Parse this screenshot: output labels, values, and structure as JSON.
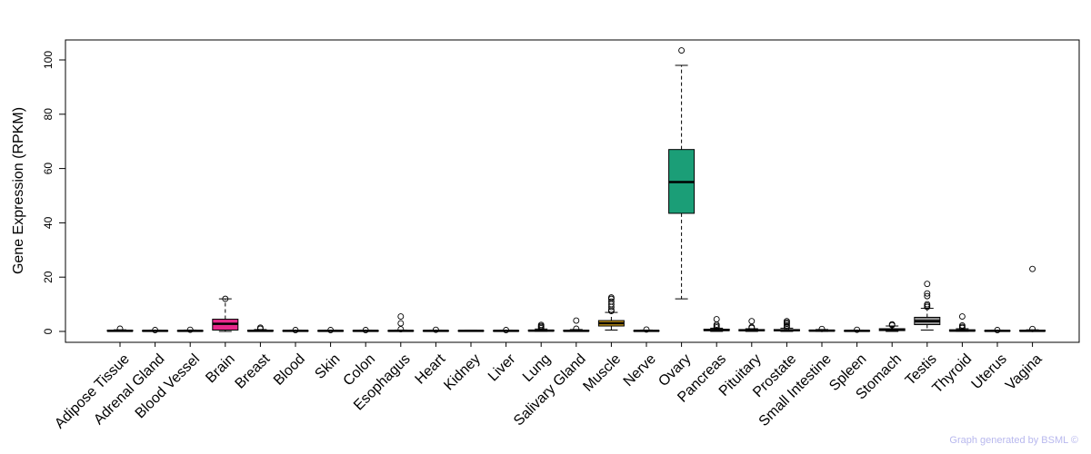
{
  "chart_data": {
    "type": "box",
    "ylabel": "Gene Expression (RPKM)",
    "ylim": [
      -5,
      107
    ],
    "yticks": [
      0,
      20,
      40,
      60,
      80,
      100
    ],
    "highlight": {
      "category": "Brain",
      "color": "#ff0000"
    },
    "credit": "Graph generated by BSML ©",
    "categories": [
      {
        "name": "Adipose Tissue",
        "color": "#8c8c8c",
        "q1": 0.1,
        "median": 0.2,
        "q3": 0.4,
        "wlo": 0.0,
        "whi": 0.6,
        "outliers": [
          1.0
        ]
      },
      {
        "name": "Adrenal Gland",
        "color": "#8c8c8c",
        "q1": 0.1,
        "median": 0.2,
        "q3": 0.3,
        "wlo": 0.0,
        "whi": 0.4,
        "outliers": [
          0.5
        ]
      },
      {
        "name": "Blood Vessel",
        "color": "#8c8c8c",
        "q1": 0.1,
        "median": 0.2,
        "q3": 0.3,
        "wlo": 0.0,
        "whi": 0.5,
        "outliers": [
          0.6
        ]
      },
      {
        "name": "Brain",
        "color": "#e7298a",
        "q1": 0.5,
        "median": 2.8,
        "q3": 4.5,
        "wlo": 0.0,
        "whi": 12.0,
        "outliers": [
          12.0
        ]
      },
      {
        "name": "Breast",
        "color": "#8c8c8c",
        "q1": 0.1,
        "median": 0.2,
        "q3": 0.4,
        "wlo": 0.0,
        "whi": 0.7,
        "outliers": [
          1.0,
          1.4
        ]
      },
      {
        "name": "Blood",
        "color": "#8c8c8c",
        "q1": 0.1,
        "median": 0.2,
        "q3": 0.3,
        "wlo": 0.0,
        "whi": 0.4,
        "outliers": [
          0.5
        ]
      },
      {
        "name": "Skin",
        "color": "#8c8c8c",
        "q1": 0.1,
        "median": 0.2,
        "q3": 0.3,
        "wlo": 0.0,
        "whi": 0.4,
        "outliers": [
          0.5
        ]
      },
      {
        "name": "Colon",
        "color": "#8c8c8c",
        "q1": 0.1,
        "median": 0.2,
        "q3": 0.3,
        "wlo": 0.0,
        "whi": 0.4,
        "outliers": [
          0.5
        ]
      },
      {
        "name": "Esophagus",
        "color": "#8c8c8c",
        "q1": 0.1,
        "median": 0.2,
        "q3": 0.3,
        "wlo": 0.0,
        "whi": 0.5,
        "outliers": [
          0.8,
          3.0,
          5.5
        ]
      },
      {
        "name": "Heart",
        "color": "#8c8c8c",
        "q1": 0.1,
        "median": 0.2,
        "q3": 0.3,
        "wlo": 0.0,
        "whi": 0.4,
        "outliers": [
          0.6
        ]
      },
      {
        "name": "Kidney",
        "color": "#8c8c8c",
        "q1": 0.1,
        "median": 0.2,
        "q3": 0.3,
        "wlo": 0.0,
        "whi": 0.4,
        "outliers": []
      },
      {
        "name": "Liver",
        "color": "#8c8c8c",
        "q1": 0.1,
        "median": 0.2,
        "q3": 0.3,
        "wlo": 0.0,
        "whi": 0.4,
        "outliers": [
          0.5
        ]
      },
      {
        "name": "Lung",
        "color": "#8c8c8c",
        "q1": 0.1,
        "median": 0.3,
        "q3": 0.5,
        "wlo": 0.0,
        "whi": 0.9,
        "outliers": [
          1.2,
          1.6,
          2.0,
          2.4
        ]
      },
      {
        "name": "Salivary Gland",
        "color": "#8c8c8c",
        "q1": 0.1,
        "median": 0.2,
        "q3": 0.4,
        "wlo": 0.0,
        "whi": 0.7,
        "outliers": [
          1.0,
          4.0
        ]
      },
      {
        "name": "Muscle",
        "color": "#d4a017",
        "q1": 2.0,
        "median": 3.0,
        "q3": 4.0,
        "wlo": 0.5,
        "whi": 7.0,
        "outliers": [
          7.5,
          8.0,
          9.0,
          10.0,
          11.0,
          12.0,
          12.5
        ]
      },
      {
        "name": "Nerve",
        "color": "#8c8c8c",
        "q1": 0.1,
        "median": 0.2,
        "q3": 0.3,
        "wlo": 0.0,
        "whi": 0.5,
        "outliers": [
          0.7
        ]
      },
      {
        "name": "Ovary",
        "color": "#1b9e77",
        "q1": 43.5,
        "median": 55.0,
        "q3": 67.0,
        "wlo": 12.0,
        "whi": 98.0,
        "outliers": [
          103.5
        ]
      },
      {
        "name": "Pancreas",
        "color": "#8c8c8c",
        "q1": 0.3,
        "median": 0.5,
        "q3": 0.8,
        "wlo": 0.0,
        "whi": 1.2,
        "outliers": [
          1.5,
          2.0,
          2.5,
          4.5
        ]
      },
      {
        "name": "Pituitary",
        "color": "#8c8c8c",
        "q1": 0.2,
        "median": 0.4,
        "q3": 0.7,
        "wlo": 0.0,
        "whi": 1.0,
        "outliers": [
          1.3,
          1.6,
          3.8
        ]
      },
      {
        "name": "Prostate",
        "color": "#8c8c8c",
        "q1": 0.2,
        "median": 0.4,
        "q3": 0.7,
        "wlo": 0.0,
        "whi": 1.2,
        "outliers": [
          1.6,
          2.2,
          2.8,
          3.3,
          3.8
        ]
      },
      {
        "name": "Small Intestine",
        "color": "#8c8c8c",
        "q1": 0.1,
        "median": 0.3,
        "q3": 0.5,
        "wlo": 0.0,
        "whi": 0.7,
        "outliers": [
          0.9
        ]
      },
      {
        "name": "Spleen",
        "color": "#8c8c8c",
        "q1": 0.1,
        "median": 0.2,
        "q3": 0.3,
        "wlo": 0.0,
        "whi": 0.4,
        "outliers": [
          0.6
        ]
      },
      {
        "name": "Stomach",
        "color": "#8c8c8c",
        "q1": 0.3,
        "median": 0.6,
        "q3": 1.0,
        "wlo": 0.0,
        "whi": 2.0,
        "outliers": [
          2.3,
          2.6
        ]
      },
      {
        "name": "Testis",
        "color": "#8c8c8c",
        "q1": 2.5,
        "median": 3.8,
        "q3": 5.2,
        "wlo": 0.5,
        "whi": 8.5,
        "outliers": [
          9.0,
          9.5,
          10.0,
          13.0,
          14.0,
          17.5
        ]
      },
      {
        "name": "Thyroid",
        "color": "#8c8c8c",
        "q1": 0.1,
        "median": 0.3,
        "q3": 0.6,
        "wlo": 0.0,
        "whi": 1.0,
        "outliers": [
          1.3,
          1.7,
          2.2,
          5.5
        ]
      },
      {
        "name": "Uterus",
        "color": "#8c8c8c",
        "q1": 0.1,
        "median": 0.2,
        "q3": 0.3,
        "wlo": 0.0,
        "whi": 0.4,
        "outliers": [
          0.5
        ]
      },
      {
        "name": "Vagina",
        "color": "#8c8c8c",
        "q1": 0.1,
        "median": 0.2,
        "q3": 0.4,
        "wlo": 0.0,
        "whi": 0.6,
        "outliers": [
          0.9,
          23.0
        ]
      }
    ]
  }
}
